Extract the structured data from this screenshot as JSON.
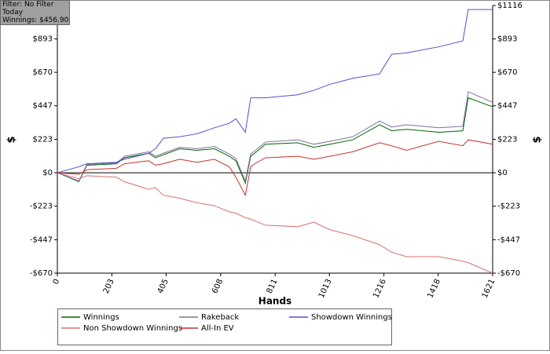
{
  "info": {
    "filter": "Filter: No Filter",
    "period": "Today",
    "winnings": "Winnings: $456.90"
  },
  "chart_data": {
    "type": "line",
    "x_label": "Hands",
    "y_label": "$",
    "y2_label": "$",
    "x": [
      0,
      80,
      110,
      220,
      250,
      340,
      365,
      395,
      455,
      520,
      585,
      640,
      665,
      700,
      720,
      735,
      775,
      895,
      955,
      1015,
      1100,
      1200,
      1245,
      1300,
      1420,
      1510,
      1530,
      1621
    ],
    "series": [
      {
        "name": "Winnings",
        "color": "#006400",
        "values": [
          0,
          -60,
          50,
          60,
          100,
          130,
          100,
          120,
          160,
          150,
          160,
          110,
          80,
          -70,
          110,
          130,
          190,
          200,
          170,
          190,
          220,
          320,
          280,
          290,
          270,
          280,
          500,
          440
        ]
      },
      {
        "name": "Rakeback",
        "color": "#8070a0",
        "values": [
          0,
          -55,
          55,
          65,
          110,
          140,
          110,
          130,
          170,
          160,
          175,
          125,
          95,
          -55,
          125,
          145,
          205,
          220,
          190,
          210,
          240,
          345,
          305,
          320,
          300,
          310,
          540,
          470
        ]
      },
      {
        "name": "Showdown Winnings",
        "color": "#5050d0",
        "values": [
          0,
          40,
          60,
          70,
          90,
          130,
          160,
          230,
          240,
          260,
          300,
          330,
          360,
          270,
          500,
          500,
          500,
          520,
          550,
          590,
          630,
          660,
          790,
          800,
          840,
          880,
          1089,
          1089
        ]
      },
      {
        "name": "Non Showdown Winnings",
        "color": "#d87070",
        "values": [
          0,
          -40,
          -20,
          -30,
          -60,
          -110,
          -100,
          -150,
          -170,
          -200,
          -220,
          -260,
          -270,
          -300,
          -310,
          -320,
          -350,
          -360,
          -330,
          -380,
          -420,
          -480,
          -530,
          -560,
          -560,
          -590,
          -600,
          -670
        ]
      },
      {
        "name": "All-In EV",
        "color": "#c83030",
        "values": [
          0,
          -10,
          20,
          30,
          60,
          80,
          50,
          60,
          90,
          70,
          90,
          40,
          -30,
          -150,
          40,
          60,
          100,
          110,
          90,
          110,
          140,
          200,
          180,
          150,
          210,
          180,
          220,
          190
        ]
      }
    ],
    "xlim": [
      0,
      1621
    ],
    "xticks": [
      0,
      203,
      405,
      608,
      811,
      1013,
      1216,
      1418,
      1621
    ],
    "ylim": [
      -670,
      1116
    ],
    "yticks": [
      {
        "value": -670,
        "label": "-$670"
      },
      {
        "value": -447,
        "label": "-$447"
      },
      {
        "value": -223,
        "label": "-$223"
      },
      {
        "value": 0,
        "label": "$0"
      },
      {
        "value": 223,
        "label": "$223"
      },
      {
        "value": 447,
        "label": "$447"
      },
      {
        "value": 670,
        "label": "$670"
      },
      {
        "value": 893,
        "label": "$893"
      },
      {
        "value": 1116,
        "label": "$1116"
      }
    ]
  }
}
